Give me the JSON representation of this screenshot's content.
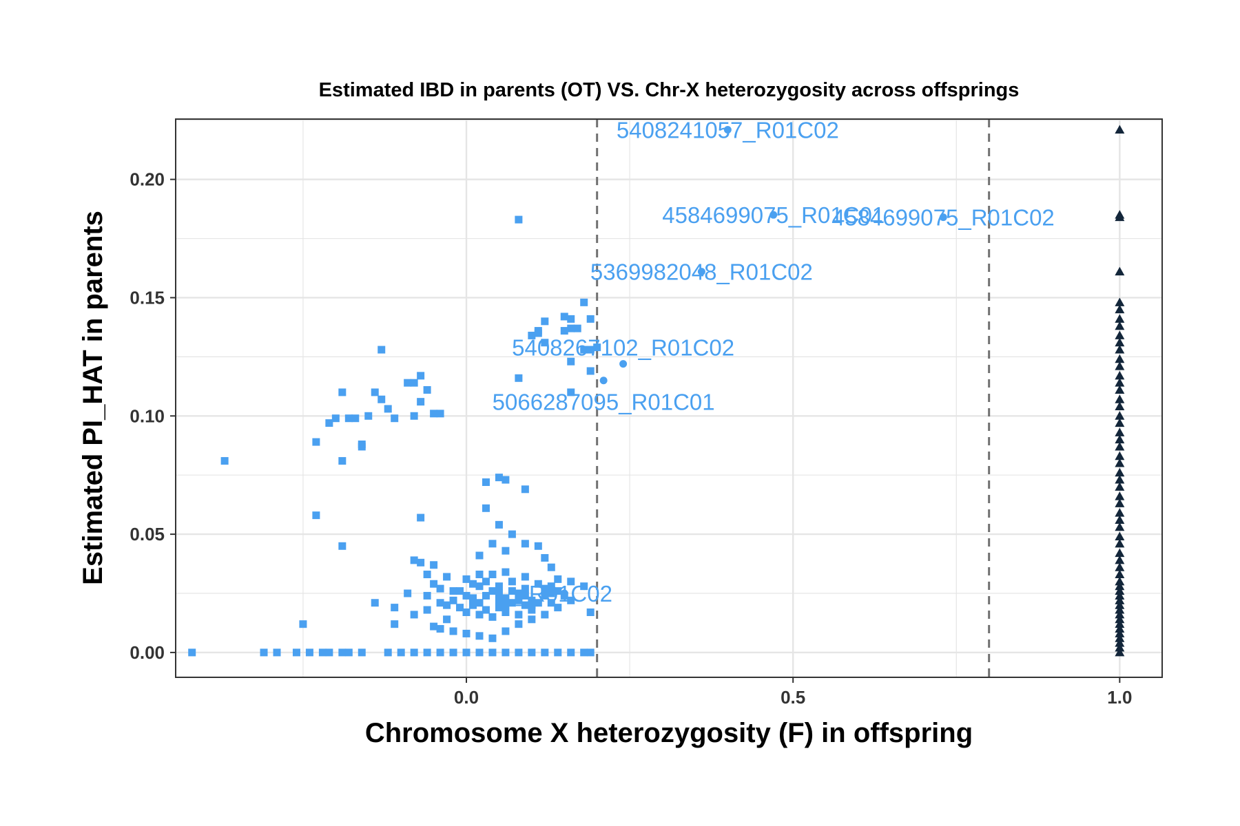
{
  "chart_data": {
    "type": "scatter",
    "title": "Estimated IBD in parents (OT) VS. Chr-X heterozygosity across offsprings",
    "xlabel": "Chromosome X heterozygosity (F) in offspring",
    "ylabel": "Estimated PI_HAT in parents",
    "xlim": [
      -0.445,
      1.065
    ],
    "ylim": [
      -0.0105,
      0.2255
    ],
    "xticks": [
      {
        "value": 0.0,
        "label": "0.0"
      },
      {
        "value": 0.5,
        "label": "0.5"
      },
      {
        "value": 1.0,
        "label": "1.0"
      }
    ],
    "yticks": [
      {
        "value": 0.0,
        "label": "0.00"
      },
      {
        "value": 0.05,
        "label": "0.05"
      },
      {
        "value": 0.1,
        "label": "0.10"
      },
      {
        "value": 0.15,
        "label": "0.15"
      },
      {
        "value": 0.2,
        "label": "0.20"
      }
    ],
    "x_minor_gridlines": [
      -0.25,
      0.25,
      0.75
    ],
    "y_minor_gridlines": [
      0.025,
      0.075,
      0.125,
      0.175,
      0.225
    ],
    "grid": true,
    "legend": "none",
    "vlines": [
      {
        "x": 0.2,
        "style": "dashed"
      },
      {
        "x": 0.8,
        "style": "dashed"
      }
    ],
    "colors": {
      "light": "#4aa0f0",
      "dark": "#13263a",
      "vline": "#707070",
      "grid": "#e5e5e5"
    },
    "series": [
      {
        "shape": "square",
        "color": "#4aa0f0",
        "points": [
          [
            -0.37,
            0.081
          ],
          [
            -0.23,
            0.089
          ],
          [
            -0.19,
            0.081
          ],
          [
            -0.19,
            0.11
          ],
          [
            -0.16,
            0.087
          ],
          [
            -0.16,
            0.088
          ],
          [
            -0.15,
            0.1
          ],
          [
            -0.14,
            0.11
          ],
          [
            -0.13,
            0.107
          ],
          [
            -0.12,
            0.103
          ],
          [
            -0.11,
            0.099
          ],
          [
            -0.13,
            0.128
          ],
          [
            -0.09,
            0.114
          ],
          [
            -0.08,
            0.114
          ],
          [
            -0.08,
            0.1
          ],
          [
            -0.07,
            0.106
          ],
          [
            -0.07,
            0.117
          ],
          [
            -0.06,
            0.111
          ],
          [
            -0.05,
            0.101
          ],
          [
            -0.04,
            0.101
          ],
          [
            -0.21,
            0.097
          ],
          [
            -0.2,
            0.099
          ],
          [
            -0.18,
            0.099
          ],
          [
            -0.17,
            0.099
          ],
          [
            -0.23,
            0.058
          ],
          [
            -0.19,
            0.045
          ],
          [
            -0.07,
            0.057
          ],
          [
            -0.25,
            0.012
          ],
          [
            0.03,
            0.072
          ],
          [
            0.05,
            0.074
          ],
          [
            0.06,
            0.073
          ],
          [
            0.09,
            0.069
          ],
          [
            0.03,
            0.061
          ],
          [
            0.05,
            0.054
          ],
          [
            0.07,
            0.05
          ],
          [
            0.08,
            0.116
          ],
          [
            0.1,
            0.134
          ],
          [
            0.11,
            0.135
          ],
          [
            0.12,
            0.131
          ],
          [
            0.11,
            0.136
          ],
          [
            0.12,
            0.14
          ],
          [
            0.15,
            0.142
          ],
          [
            0.16,
            0.141
          ],
          [
            0.15,
            0.136
          ],
          [
            0.16,
            0.137
          ],
          [
            0.17,
            0.137
          ],
          [
            0.18,
            0.148
          ],
          [
            0.19,
            0.141
          ],
          [
            0.16,
            0.123
          ],
          [
            0.16,
            0.11
          ],
          [
            0.18,
            0.128
          ],
          [
            0.19,
            0.128
          ],
          [
            0.2,
            0.129
          ],
          [
            0.19,
            0.119
          ],
          [
            0.08,
            0.183
          ],
          [
            -0.08,
            0.039
          ],
          [
            -0.07,
            0.038
          ],
          [
            -0.06,
            0.033
          ],
          [
            -0.05,
            0.037
          ],
          [
            0.02,
            0.041
          ],
          [
            0.04,
            0.046
          ],
          [
            0.06,
            0.043
          ],
          [
            0.09,
            0.046
          ],
          [
            0.11,
            0.045
          ],
          [
            0.12,
            0.04
          ],
          [
            0.13,
            0.036
          ],
          [
            0.14,
            0.031
          ],
          [
            0.16,
            0.03
          ],
          [
            0.18,
            0.028
          ],
          [
            -0.14,
            0.021
          ],
          [
            -0.11,
            0.019
          ],
          [
            -0.09,
            0.025
          ],
          [
            -0.08,
            0.016
          ],
          [
            -0.06,
            0.018
          ],
          [
            -0.05,
            0.011
          ],
          [
            -0.04,
            0.01
          ],
          [
            -0.03,
            0.014
          ],
          [
            -0.02,
            0.009
          ],
          [
            0.0,
            0.008
          ],
          [
            0.02,
            0.007
          ],
          [
            0.04,
            0.006
          ],
          [
            0.06,
            0.009
          ],
          [
            0.08,
            0.012
          ],
          [
            0.1,
            0.014
          ],
          [
            0.12,
            0.016
          ],
          [
            0.14,
            0.019
          ],
          [
            0.16,
            0.022
          ],
          [
            0.19,
            0.017
          ],
          [
            -0.11,
            0.012
          ],
          [
            -0.06,
            0.024
          ],
          [
            -0.05,
            0.029
          ],
          [
            -0.04,
            0.021
          ],
          [
            -0.03,
            0.032
          ],
          [
            -0.02,
            0.026
          ],
          [
            -0.01,
            0.019
          ],
          [
            0.0,
            0.031
          ],
          [
            0.01,
            0.023
          ],
          [
            0.02,
            0.028
          ],
          [
            0.03,
            0.018
          ],
          [
            0.04,
            0.033
          ],
          [
            0.05,
            0.025
          ],
          [
            0.06,
            0.02
          ],
          [
            0.07,
            0.03
          ],
          [
            0.08,
            0.022
          ],
          [
            0.09,
            0.027
          ],
          [
            0.1,
            0.018
          ],
          [
            0.11,
            0.029
          ],
          [
            0.12,
            0.024
          ],
          [
            0.13,
            0.021
          ],
          [
            0.14,
            0.026
          ],
          [
            -0.04,
            0.027
          ],
          [
            -0.02,
            0.022
          ],
          [
            0.0,
            0.024
          ],
          [
            0.02,
            0.021
          ],
          [
            0.04,
            0.026
          ],
          [
            0.06,
            0.023
          ],
          [
            0.08,
            0.025
          ],
          [
            0.1,
            0.022
          ],
          [
            0.12,
            0.027
          ],
          [
            0.01,
            0.029
          ],
          [
            0.03,
            0.024
          ],
          [
            0.05,
            0.028
          ],
          [
            0.07,
            0.021
          ],
          [
            0.09,
            0.024
          ],
          [
            -0.01,
            0.026
          ],
          [
            0.03,
            0.03
          ],
          [
            0.05,
            0.019
          ],
          [
            0.07,
            0.026
          ],
          [
            0.11,
            0.021
          ],
          [
            0.13,
            0.028
          ],
          [
            0.15,
            0.024
          ],
          [
            0.0,
            0.017
          ],
          [
            0.02,
            0.016
          ],
          [
            0.04,
            0.015
          ],
          [
            0.06,
            0.017
          ],
          [
            0.08,
            0.016
          ],
          [
            0.1,
            0.02
          ],
          [
            0.02,
            0.033
          ],
          [
            0.06,
            0.034
          ],
          [
            0.09,
            0.032
          ],
          [
            -0.03,
            0.02
          ],
          [
            0.01,
            0.02
          ],
          [
            0.05,
            0.022
          ],
          [
            0.09,
            0.02
          ],
          [
            0.13,
            0.025
          ],
          [
            -0.42,
            0.0
          ],
          [
            -0.31,
            0.0
          ],
          [
            -0.29,
            0.0
          ],
          [
            -0.26,
            0.0
          ],
          [
            -0.24,
            0.0
          ],
          [
            -0.22,
            0.0
          ],
          [
            -0.21,
            0.0
          ],
          [
            -0.19,
            0.0
          ],
          [
            -0.18,
            0.0
          ],
          [
            -0.16,
            0.0
          ],
          [
            -0.12,
            0.0
          ],
          [
            -0.1,
            0.0
          ],
          [
            -0.08,
            0.0
          ],
          [
            -0.06,
            0.0
          ],
          [
            -0.04,
            0.0
          ],
          [
            -0.02,
            0.0
          ],
          [
            0.0,
            0.0
          ],
          [
            0.02,
            0.0
          ],
          [
            0.04,
            0.0
          ],
          [
            0.06,
            0.0
          ],
          [
            0.08,
            0.0
          ],
          [
            0.1,
            0.0
          ],
          [
            0.12,
            0.0
          ],
          [
            0.14,
            0.0
          ],
          [
            0.16,
            0.0
          ],
          [
            0.18,
            0.0
          ],
          [
            0.19,
            0.0
          ]
        ]
      },
      {
        "shape": "circle",
        "color": "#4aa0f0",
        "points": [
          [
            0.4,
            0.221
          ],
          [
            0.47,
            0.185
          ],
          [
            0.73,
            0.184
          ],
          [
            0.36,
            0.161
          ],
          [
            0.24,
            0.122
          ],
          [
            0.21,
            0.115
          ],
          [
            0.15,
            0.025
          ]
        ]
      },
      {
        "shape": "triangle",
        "color": "#13263a",
        "points": [
          [
            1.0,
            0.221
          ],
          [
            1.0,
            0.185
          ],
          [
            1.0,
            0.184
          ],
          [
            1.0,
            0.161
          ],
          [
            1.0,
            0.148
          ],
          [
            1.0,
            0.145
          ],
          [
            1.0,
            0.141
          ],
          [
            1.0,
            0.138
          ],
          [
            1.0,
            0.134
          ],
          [
            1.0,
            0.131
          ],
          [
            1.0,
            0.128
          ],
          [
            1.0,
            0.124
          ],
          [
            1.0,
            0.121
          ],
          [
            1.0,
            0.117
          ],
          [
            1.0,
            0.114
          ],
          [
            1.0,
            0.111
          ],
          [
            1.0,
            0.107
          ],
          [
            1.0,
            0.104
          ],
          [
            1.0,
            0.1
          ],
          [
            1.0,
            0.097
          ],
          [
            1.0,
            0.093
          ],
          [
            1.0,
            0.09
          ],
          [
            1.0,
            0.087
          ],
          [
            1.0,
            0.083
          ],
          [
            1.0,
            0.08
          ],
          [
            1.0,
            0.076
          ],
          [
            1.0,
            0.073
          ],
          [
            1.0,
            0.07
          ],
          [
            1.0,
            0.066
          ],
          [
            1.0,
            0.063
          ],
          [
            1.0,
            0.059
          ],
          [
            1.0,
            0.056
          ],
          [
            1.0,
            0.053
          ],
          [
            1.0,
            0.049
          ],
          [
            1.0,
            0.046
          ],
          [
            1.0,
            0.042
          ],
          [
            1.0,
            0.039
          ],
          [
            1.0,
            0.036
          ],
          [
            1.0,
            0.033
          ],
          [
            1.0,
            0.03
          ],
          [
            1.0,
            0.028
          ],
          [
            1.0,
            0.026
          ],
          [
            1.0,
            0.024
          ],
          [
            1.0,
            0.022
          ],
          [
            1.0,
            0.02
          ],
          [
            1.0,
            0.018
          ],
          [
            1.0,
            0.016
          ],
          [
            1.0,
            0.014
          ],
          [
            1.0,
            0.012
          ],
          [
            1.0,
            0.01
          ],
          [
            1.0,
            0.008
          ],
          [
            1.0,
            0.006
          ],
          [
            1.0,
            0.004
          ],
          [
            1.0,
            0.002
          ],
          [
            1.0,
            0.0
          ]
        ]
      }
    ],
    "annotations": [
      {
        "text": "5408241057_R01C02",
        "x": 0.4,
        "y": 0.221,
        "color": "#4aa0f0"
      },
      {
        "text": "4584699075_R01C01",
        "x": 0.47,
        "y": 0.185,
        "color": "#4aa0f0"
      },
      {
        "text": "4584699075_R01C02",
        "x": 0.73,
        "y": 0.184,
        "color": "#4aa0f0"
      },
      {
        "text": "5369982048_R01C02",
        "x": 0.36,
        "y": 0.161,
        "color": "#4aa0f0"
      },
      {
        "text": "5408267102_R01C02",
        "x": 0.24,
        "y": 0.129,
        "color": "#4aa0f0"
      },
      {
        "text": "5066287095_R01C01",
        "x": 0.21,
        "y": 0.106,
        "color": "#4aa0f0"
      },
      {
        "text": "_R01C02",
        "x": 0.15,
        "y": 0.025,
        "color": "#4aa0f0"
      }
    ]
  }
}
